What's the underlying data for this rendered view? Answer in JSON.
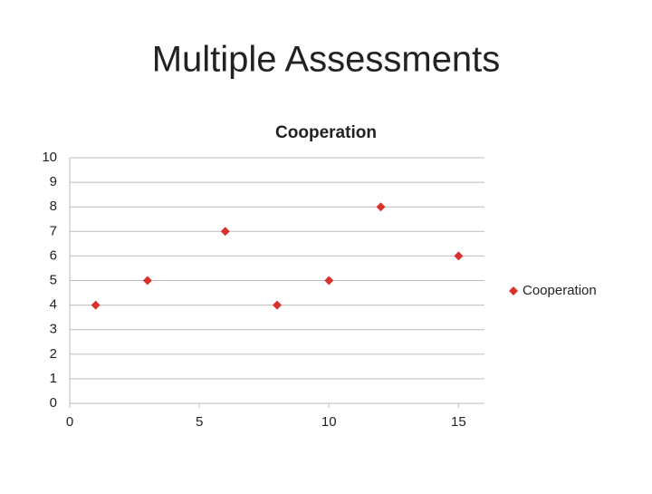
{
  "title": "Multiple Assessments",
  "chart_data": {
    "type": "scatter",
    "title": "Cooperation",
    "series": [
      {
        "name": "Cooperation",
        "color": "#d9312b",
        "x": [
          1,
          3,
          6,
          8,
          10,
          12,
          15
        ],
        "values": [
          4,
          5,
          7,
          4,
          5,
          8,
          6
        ]
      }
    ],
    "xlim": [
      0,
      16
    ],
    "xticks": [
      0,
      5,
      10,
      15
    ],
    "ylim": [
      0,
      10
    ],
    "yticks": [
      0,
      1,
      2,
      3,
      4,
      5,
      6,
      7,
      8,
      9,
      10
    ],
    "grid": true,
    "legend": "right"
  }
}
